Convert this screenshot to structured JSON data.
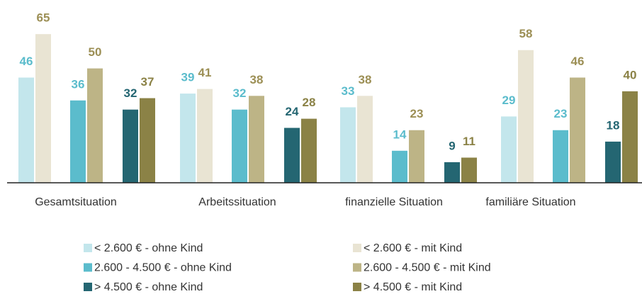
{
  "chart_data": {
    "type": "bar",
    "categories": [
      "Gesamtsituation",
      "Arbeitssituation",
      "finanzielle Situation",
      "familiäre Situation"
    ],
    "ylim": [
      0,
      70
    ],
    "series": [
      {
        "name": "< 2.600 € - ohne Kind",
        "color": "#c3e6ec",
        "label_color": "#5bbccc",
        "values": [
          46,
          39,
          33,
          29
        ]
      },
      {
        "name": "< 2.600 € - mit Kind",
        "color": "#e9e4d3",
        "label_color": "#9c8f55",
        "values": [
          65,
          41,
          38,
          58
        ]
      },
      {
        "name": "2.600 - 4.500 € - ohne Kind",
        "color": "#5bbccc",
        "label_color": "#5bbccc",
        "values": [
          36,
          32,
          14,
          23
        ]
      },
      {
        "name": "2.600 - 4.500 € - mit Kind",
        "color": "#bdb486",
        "label_color": "#9c8f55",
        "values": [
          50,
          38,
          23,
          46
        ]
      },
      {
        "name": "> 4.500 € - ohne Kind",
        "color": "#246672",
        "label_color": "#246672",
        "values": [
          32,
          24,
          9,
          18
        ]
      },
      {
        "name": "> 4.500 € - mit Kind",
        "color": "#8b8246",
        "label_color": "#8b8246",
        "values": [
          37,
          28,
          11,
          40
        ]
      }
    ]
  }
}
